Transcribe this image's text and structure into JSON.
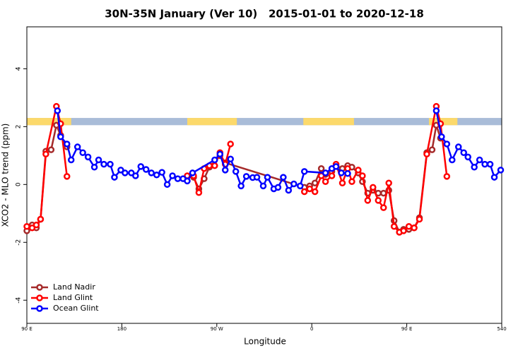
{
  "chart_data": {
    "type": "line",
    "title": "30N-35N January (Ver 10)   2015-01-01 to 2020-12-18",
    "x_label": "Longitude",
    "y_label": "XCO2 - MLO trend (ppm)",
    "xlim": [
      90,
      540
    ],
    "ylim": [
      -4.8,
      5.45
    ],
    "xticks": [
      {
        "value": 90,
        "label": "90 E"
      },
      180,
      {
        "value": 270,
        "label": "90 W"
      },
      {
        "value": 360,
        "label": "0"
      },
      {
        "value": 450,
        "label": "90 E"
      },
      540
    ],
    "yticks": [
      -4,
      -2,
      0,
      2,
      4
    ],
    "legend": "bottom-left",
    "band": {
      "ylim": [
        2.05,
        2.3
      ],
      "ocean_color": "#a9bcd8",
      "land_color": "#fcd96b",
      "land_regions": [
        [
          90,
          132
        ],
        [
          242,
          289
        ],
        [
          352,
          400
        ],
        [
          471,
          498
        ]
      ]
    },
    "series": [
      {
        "name": "Land Nadir",
        "color": "#a52a2a",
        "x": [
          90,
          95,
          99,
          103,
          108,
          113,
          118,
          122,
          128,
          132,
          248,
          253,
          258,
          263,
          273,
          278,
          353,
          358,
          363,
          369,
          373,
          379,
          383,
          389,
          394,
          398,
          404,
          408,
          413,
          418,
          423,
          428,
          433,
          438,
          443,
          447,
          452,
          457,
          462,
          469,
          474,
          478,
          482
        ],
        "values": [
          -1.6,
          -1.4,
          -1.5,
          -1.2,
          1.15,
          1.2,
          2.05,
          1.7,
          1.3,
          null,
          0.25,
          -0.15,
          0.2,
          0.6,
          1.0,
          0.75,
          -0.1,
          -0.05,
          0.05,
          0.55,
          0.35,
          0.45,
          0.65,
          0.55,
          0.65,
          0.6,
          0.4,
          0.1,
          -0.3,
          -0.2,
          -0.3,
          -0.3,
          -0.2,
          -1.25,
          -1.65,
          -1.55,
          -1.55,
          -1.5,
          -1.15,
          1.1,
          1.2,
          2.05,
          1.6
        ]
      },
      {
        "name": "Land Glint",
        "color": "#ff0000",
        "x": [
          90,
          95,
          99,
          103,
          108,
          118,
          122,
          128,
          132,
          242,
          248,
          253,
          258,
          263,
          268,
          273,
          278,
          283,
          300,
          353,
          358,
          363,
          369,
          373,
          379,
          383,
          389,
          394,
          398,
          404,
          408,
          413,
          418,
          423,
          428,
          433,
          438,
          443,
          447,
          452,
          457,
          462,
          469,
          478,
          482,
          488
        ],
        "values": [
          -1.45,
          -1.5,
          -1.4,
          -1.2,
          1.05,
          2.7,
          2.1,
          0.28,
          null,
          0.3,
          0.3,
          -0.28,
          0.55,
          0.65,
          0.65,
          1.1,
          0.7,
          1.4,
          null,
          -0.25,
          -0.15,
          -0.25,
          0.3,
          0.1,
          0.3,
          0.7,
          0.05,
          0.55,
          0.1,
          0.5,
          0.3,
          -0.55,
          -0.1,
          -0.55,
          -0.8,
          0.05,
          -1.45,
          -1.65,
          -1.6,
          -1.45,
          -1.5,
          -1.2,
          1.05,
          2.7,
          2.1,
          0.28
        ]
      },
      {
        "name": "Ocean Glint",
        "color": "#0000ff",
        "x": [
          119,
          122,
          128,
          132,
          138,
          143,
          148,
          154,
          158,
          163,
          169,
          173,
          179,
          183,
          189,
          193,
          198,
          203,
          208,
          213,
          218,
          223,
          228,
          233,
          238,
          242,
          247,
          268,
          273,
          278,
          283,
          288,
          293,
          298,
          304,
          308,
          314,
          318,
          324,
          328,
          333,
          338,
          343,
          349,
          353,
          373,
          379,
          383,
          388,
          394,
          450,
          478,
          483,
          488,
          493,
          499,
          504,
          508,
          514,
          519,
          524,
          529,
          533,
          539
        ],
        "values": [
          2.55,
          1.65,
          1.4,
          0.85,
          1.3,
          1.1,
          0.95,
          0.6,
          0.85,
          0.7,
          0.7,
          0.25,
          0.5,
          0.4,
          0.4,
          0.3,
          0.62,
          0.52,
          0.4,
          0.33,
          0.42,
          0.0,
          0.3,
          0.2,
          0.2,
          0.12,
          0.4,
          0.85,
          1.05,
          0.5,
          0.88,
          0.45,
          -0.05,
          0.28,
          0.24,
          0.25,
          -0.05,
          0.25,
          -0.15,
          -0.1,
          0.25,
          -0.2,
          0.02,
          -0.05,
          0.45,
          0.4,
          0.55,
          0.62,
          0.4,
          0.38,
          null,
          2.55,
          1.65,
          1.4,
          0.85,
          1.3,
          1.1,
          0.95,
          0.6,
          0.85,
          0.7,
          0.7,
          0.25,
          0.5
        ]
      }
    ]
  }
}
